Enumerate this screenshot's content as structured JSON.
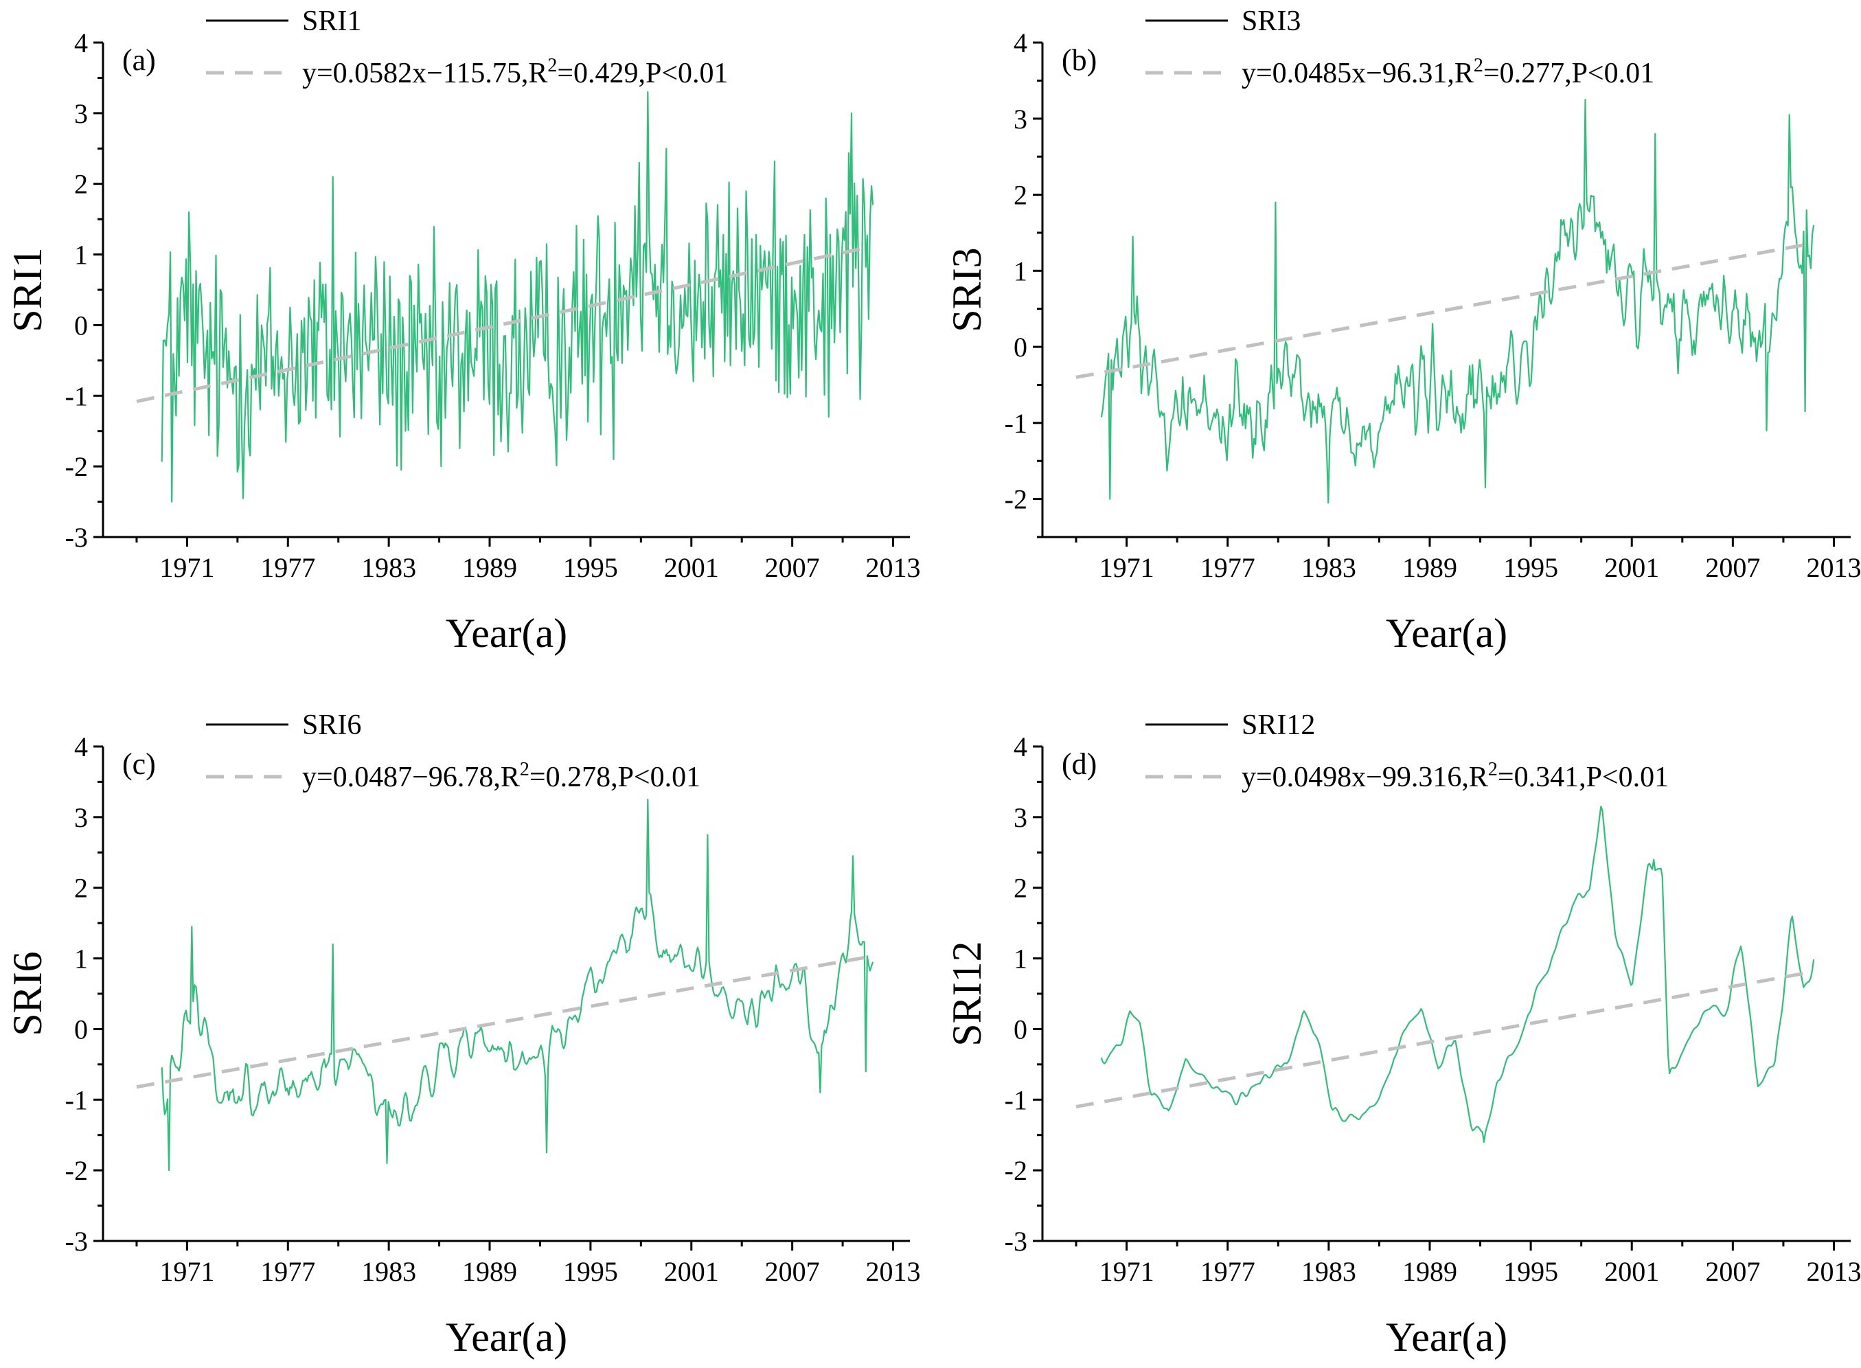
{
  "colors": {
    "series": "#2ebf7a",
    "trend": "#c0c0c0",
    "axis": "#000000",
    "legend_line": "#000000"
  },
  "chart_data": [
    {
      "type": "line",
      "panel": "(a)",
      "title": "",
      "xlabel": "Year(a)",
      "ylabel": "SRI1",
      "xlim": [
        1966,
        2014
      ],
      "ylim": [
        -3,
        4
      ],
      "x_ticks": [
        1971,
        1977,
        1983,
        1989,
        1995,
        2001,
        2007,
        2013
      ],
      "y_ticks": [
        -3,
        -2,
        -1,
        0,
        1,
        2,
        3,
        4
      ],
      "y_tick_labels": [
        "-3",
        "-2",
        "-1",
        "0",
        "1",
        "2",
        "3",
        "4"
      ],
      "x_tick_labels": [
        "1971",
        "1977",
        "1983",
        "1989",
        "1995",
        "2001",
        "2007",
        "2013"
      ],
      "legend": {
        "series": "SRI1",
        "fit_prefix": "y=0.0582x−115.75,R",
        "fit_sup": "2",
        "fit_suffix": "=0.429,P<0.01"
      },
      "trend": {
        "start": [
          1968,
          -1.08
        ],
        "end": [
          2011.5,
          1.1
        ]
      },
      "series": [
        {
          "name": "SRI1",
          "x_start": 1969.5,
          "x_end": 2011.8,
          "points": 500,
          "volatility": 0.78,
          "smoothing": 1,
          "anchors": [
            [
              1969.5,
              -0.5
            ],
            [
              1970,
              -0.3
            ],
            [
              1971,
              0.1
            ],
            [
              1972,
              -0.5
            ],
            [
              1974,
              -0.7
            ],
            [
              1976,
              -0.6
            ],
            [
              1978,
              -0.4
            ],
            [
              1980,
              -0.3
            ],
            [
              1982,
              -0.2
            ],
            [
              1984,
              -0.7
            ],
            [
              1986,
              -0.6
            ],
            [
              1988,
              -0.3
            ],
            [
              1990,
              -0.5
            ],
            [
              1992,
              -0.4
            ],
            [
              1994,
              -0.2
            ],
            [
              1996,
              0.2
            ],
            [
              1997.5,
              1.0
            ],
            [
              1999,
              0.8
            ],
            [
              2001,
              0.3
            ],
            [
              2003,
              0.4
            ],
            [
              2005,
              0.5
            ],
            [
              2007,
              0.5
            ],
            [
              2009,
              0.3
            ],
            [
              2010.5,
              1.0
            ],
            [
              2011.8,
              1.1
            ]
          ],
          "peaks": [
            [
              1970.1,
              -2.5
            ],
            [
              1971.1,
              1.6
            ],
            [
              1979.7,
              2.1
            ],
            [
              1998.4,
              3.3
            ],
            [
              2010.5,
              3.0
            ],
            [
              1997.9,
              2.3
            ],
            [
              1999.5,
              2.5
            ],
            [
              1986.1,
              -2.0
            ],
            [
              1996.4,
              -1.9
            ],
            [
              2009.2,
              -1.3
            ],
            [
              2011.0,
              -1.05
            ],
            [
              2011.8,
              1.7
            ]
          ]
        }
      ]
    },
    {
      "type": "line",
      "panel": "(b)",
      "title": "",
      "xlabel": "Year(a)",
      "ylabel": "SRI3",
      "xlim": [
        1966,
        2014
      ],
      "ylim": [
        -2.5,
        4
      ],
      "x_ticks": [
        1971,
        1977,
        1983,
        1989,
        1995,
        2001,
        2007,
        2013
      ],
      "y_ticks": [
        -2,
        -1,
        0,
        1,
        2,
        3,
        4
      ],
      "y_tick_labels": [
        "-2",
        "-1",
        "0",
        "1",
        "2",
        "3",
        "4"
      ],
      "x_tick_labels": [
        "1971",
        "1977",
        "1983",
        "1989",
        "1995",
        "2001",
        "2007",
        "2013"
      ],
      "legend": {
        "series": "SRI3",
        "fit_prefix": "y=0.0485x−96.31,R",
        "fit_sup": "2",
        "fit_suffix": "=0.277,P<0.01"
      },
      "trend": {
        "start": [
          1968,
          -0.4
        ],
        "end": [
          2011.5,
          1.35
        ]
      },
      "series": [
        {
          "name": "SRI3",
          "x_start": 1969.5,
          "x_end": 2011.8,
          "points": 500,
          "volatility": 0.5,
          "smoothing": 2,
          "anchors": [
            [
              1969.5,
              -0.8
            ],
            [
              1970.5,
              -0.2
            ],
            [
              1971.5,
              0.3
            ],
            [
              1973,
              -0.9
            ],
            [
              1975,
              -0.8
            ],
            [
              1977,
              -1.0
            ],
            [
              1979,
              -0.6
            ],
            [
              1981,
              -0.3
            ],
            [
              1983,
              -1.0
            ],
            [
              1985,
              -1.1
            ],
            [
              1987,
              -0.6
            ],
            [
              1989,
              -0.6
            ],
            [
              1991,
              -0.9
            ],
            [
              1993,
              -0.5
            ],
            [
              1995,
              0.1
            ],
            [
              1996.5,
              1.0
            ],
            [
              1998,
              1.8
            ],
            [
              1999.5,
              1.2
            ],
            [
              2001,
              0.6
            ],
            [
              2003,
              0.3
            ],
            [
              2005,
              0.3
            ],
            [
              2007,
              0.5
            ],
            [
              2009,
              0.0
            ],
            [
              2010.5,
              1.5
            ],
            [
              2011.8,
              1.2
            ]
          ],
          "peaks": [
            [
              1970,
              -2.0
            ],
            [
              1971.4,
              1.45
            ],
            [
              1979.8,
              1.9
            ],
            [
              1998.2,
              3.25
            ],
            [
              2010.4,
              3.05
            ],
            [
              1983.0,
              -2.05
            ],
            [
              1992.3,
              -1.85
            ],
            [
              2009.0,
              -1.1
            ],
            [
              2011.3,
              -0.85
            ],
            [
              2002.4,
              2.8
            ],
            [
              2011.8,
              1.6
            ]
          ]
        }
      ]
    },
    {
      "type": "line",
      "panel": "(c)",
      "title": "",
      "xlabel": "Year(a)",
      "ylabel": "SRI6",
      "xlim": [
        1966,
        2014
      ],
      "ylim": [
        -3,
        4
      ],
      "x_ticks": [
        1971,
        1977,
        1983,
        1989,
        1995,
        2001,
        2007,
        2013
      ],
      "y_ticks": [
        -3,
        -2,
        -1,
        0,
        1,
        2,
        3,
        4
      ],
      "y_tick_labels": [
        "-3",
        "-2",
        "-1",
        "0",
        "1",
        "2",
        "3",
        "4"
      ],
      "x_tick_labels": [
        "1971",
        "1977",
        "1983",
        "1989",
        "1995",
        "2001",
        "2007",
        "2013"
      ],
      "legend": {
        "series": "SRI6",
        "fit_prefix": "y=0.0487−96.78,R",
        "fit_sup": "2",
        "fit_suffix": "=0.278,P<0.01"
      },
      "trend": {
        "start": [
          1968,
          -0.82
        ],
        "end": [
          2011.5,
          1.02
        ]
      },
      "series": [
        {
          "name": "SRI6",
          "x_start": 1969.5,
          "x_end": 2011.8,
          "points": 500,
          "volatility": 0.34,
          "smoothing": 3,
          "anchors": [
            [
              1969.5,
              -1.0
            ],
            [
              1970.5,
              -0.2
            ],
            [
              1971.5,
              0.5
            ],
            [
              1973,
              -0.8
            ],
            [
              1975,
              -0.9
            ],
            [
              1977,
              -1.0
            ],
            [
              1979,
              -0.5
            ],
            [
              1981,
              -0.4
            ],
            [
              1983,
              -1.2
            ],
            [
              1985,
              -0.9
            ],
            [
              1987,
              -0.3
            ],
            [
              1989,
              -0.3
            ],
            [
              1991,
              -0.6
            ],
            [
              1993,
              -0.2
            ],
            [
              1995,
              0.6
            ],
            [
              1996.5,
              1.0
            ],
            [
              1998,
              1.8
            ],
            [
              1999.5,
              1.2
            ],
            [
              2001,
              1.0
            ],
            [
              2003,
              0.3
            ],
            [
              2005,
              0.4
            ],
            [
              2007,
              1.0
            ],
            [
              2008.8,
              -0.4
            ],
            [
              2010.5,
              1.5
            ],
            [
              2011.8,
              0.8
            ]
          ],
          "peaks": [
            [
              1969.9,
              -2.0
            ],
            [
              1971.3,
              1.45
            ],
            [
              1998.4,
              3.25
            ],
            [
              2010.6,
              2.45
            ],
            [
              2002.0,
              2.75
            ],
            [
              1982.9,
              -1.9
            ],
            [
              1992.4,
              -1.75
            ],
            [
              2008.7,
              -0.9
            ],
            [
              2011.4,
              -0.6
            ],
            [
              1979.7,
              1.2
            ],
            [
              2011.8,
              0.95
            ]
          ]
        }
      ]
    },
    {
      "type": "line",
      "panel": "(d)",
      "title": "",
      "xlabel": "Year(a)",
      "ylabel": "SRI12",
      "xlim": [
        1966,
        2014
      ],
      "ylim": [
        -3,
        4
      ],
      "x_ticks": [
        1971,
        1977,
        1983,
        1989,
        1995,
        2001,
        2007,
        2013
      ],
      "y_ticks": [
        -3,
        -2,
        -1,
        0,
        1,
        2,
        3,
        4
      ],
      "y_tick_labels": [
        "-3",
        "-2",
        "-1",
        "0",
        "1",
        "2",
        "3",
        "4"
      ],
      "x_tick_labels": [
        "1971",
        "1977",
        "1983",
        "1989",
        "1995",
        "2001",
        "2007",
        "2013"
      ],
      "legend": {
        "series": "SRI12",
        "fit_prefix": "y=0.0498x−99.316,R",
        "fit_sup": "2",
        "fit_suffix": "=0.341,P<0.01"
      },
      "trend": {
        "start": [
          1968,
          -1.1
        ],
        "end": [
          2011.5,
          0.8
        ]
      },
      "series": [
        {
          "name": "SRI12",
          "x_start": 1969.5,
          "x_end": 2011.8,
          "points": 500,
          "volatility": 0.1,
          "smoothing": 4,
          "anchors": [
            [
              1969.5,
              -0.5
            ],
            [
              1970.5,
              -0.3
            ],
            [
              1971.2,
              0.25
            ],
            [
              1971.8,
              0.05
            ],
            [
              1972.5,
              -0.9
            ],
            [
              1973.5,
              -1.15
            ],
            [
              1974.5,
              -0.4
            ],
            [
              1976,
              -0.8
            ],
            [
              1977.5,
              -1.0
            ],
            [
              1979,
              -0.7
            ],
            [
              1980.5,
              -0.5
            ],
            [
              1981.5,
              0.2
            ],
            [
              1982.5,
              -0.2
            ],
            [
              1983.2,
              -1.1
            ],
            [
              1984.5,
              -1.3
            ],
            [
              1986,
              -1.0
            ],
            [
              1987.5,
              0.0
            ],
            [
              1988.5,
              0.3
            ],
            [
              1989.5,
              -0.5
            ],
            [
              1990.5,
              -0.2
            ],
            [
              1991.5,
              -1.4
            ],
            [
              1992.3,
              -1.55
            ],
            [
              1993,
              -0.8
            ],
            [
              1994.5,
              0.0
            ],
            [
              1995.5,
              0.6
            ],
            [
              1996.5,
              1.1
            ],
            [
              1997.5,
              1.8
            ],
            [
              1998.5,
              2.0
            ],
            [
              1999.2,
              3.1
            ],
            [
              2000,
              1.4
            ],
            [
              2001,
              0.6
            ],
            [
              2002,
              2.3
            ],
            [
              2002.8,
              2.25
            ],
            [
              2003.2,
              -0.7
            ],
            [
              2004.5,
              -0.1
            ],
            [
              2005.5,
              0.3
            ],
            [
              2006.5,
              0.2
            ],
            [
              2007.5,
              1.2
            ],
            [
              2008.5,
              -0.8
            ],
            [
              2009.5,
              -0.5
            ],
            [
              2010.5,
              1.6
            ],
            [
              2011.2,
              0.55
            ],
            [
              2011.8,
              0.75
            ]
          ],
          "peaks": [
            [
              1999.2,
              3.15
            ],
            [
              1992.2,
              -1.6
            ],
            [
              2002.3,
              2.4
            ]
          ]
        }
      ]
    }
  ]
}
